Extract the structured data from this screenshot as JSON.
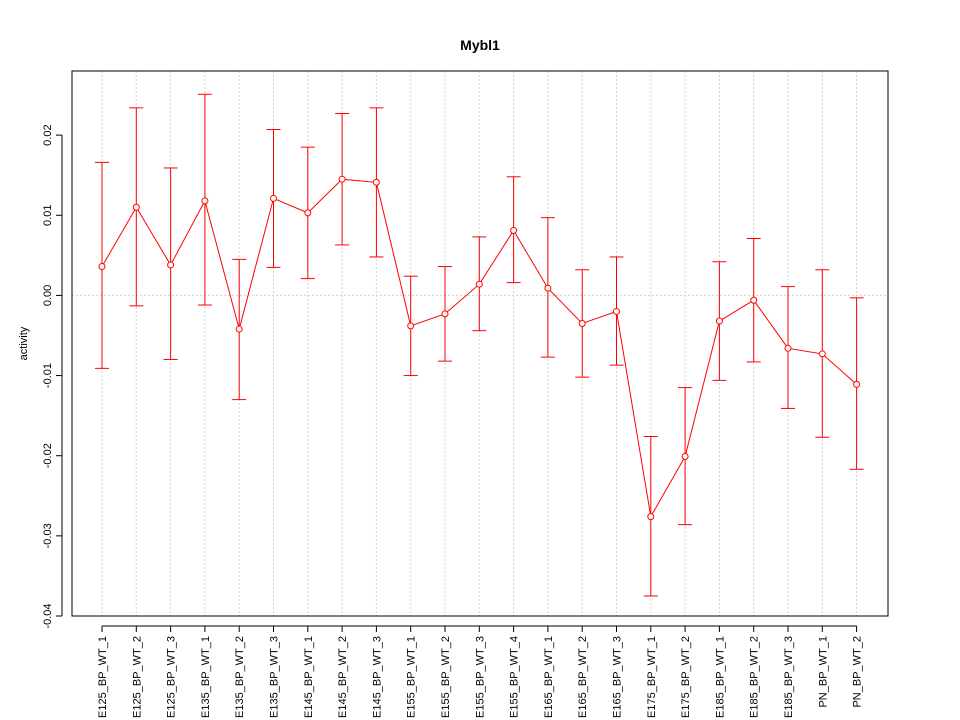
{
  "chart_data": {
    "type": "line",
    "title": "Mybl1",
    "xlabel": "",
    "ylabel": "activity",
    "ylim": [
      -0.04,
      0.028
    ],
    "yticks": [
      -0.04,
      -0.03,
      -0.02,
      -0.01,
      0.0,
      0.01,
      0.02
    ],
    "ytick_labels": [
      "-0.04",
      "-0.03",
      "-0.02",
      "-0.01",
      "0.00",
      "0.01",
      "0.02"
    ],
    "grid": true,
    "series_color": "#ff0000",
    "grid_color": "#d3d3d3",
    "categories": [
      "E125_BP_WT_1",
      "E125_BP_WT_2",
      "E125_BP_WT_3",
      "E135_BP_WT_1",
      "E135_BP_WT_2",
      "E135_BP_WT_3",
      "E145_BP_WT_1",
      "E145_BP_WT_2",
      "E145_BP_WT_3",
      "E155_BP_WT_1",
      "E155_BP_WT_2",
      "E155_BP_WT_3",
      "E155_BP_WT_4",
      "E165_BP_WT_1",
      "E165_BP_WT_2",
      "E165_BP_WT_3",
      "E175_BP_WT_1",
      "E175_BP_WT_2",
      "E185_BP_WT_1",
      "E185_BP_WT_2",
      "E185_BP_WT_3",
      "PN_BP_WT_1",
      "PN_BP_WT_2"
    ],
    "values": [
      0.0036,
      0.011,
      0.0038,
      0.0118,
      -0.0042,
      0.0121,
      0.0103,
      0.0145,
      0.0141,
      -0.0038,
      -0.0023,
      0.0014,
      0.0081,
      0.0009,
      -0.0035,
      -0.002,
      -0.0276,
      -0.0201,
      -0.0032,
      -0.0006,
      -0.0066,
      -0.0073,
      -0.0111
    ],
    "upper": [
      0.0166,
      0.0234,
      0.0159,
      0.0251,
      0.0045,
      0.0207,
      0.0185,
      0.0227,
      0.0234,
      0.0024,
      0.0036,
      0.0073,
      0.0148,
      0.0097,
      0.0032,
      0.0048,
      -0.0176,
      -0.0115,
      0.0042,
      0.0071,
      0.0011,
      0.0032,
      -0.0003
    ],
    "lower": [
      -0.0091,
      -0.0013,
      -0.008,
      -0.0012,
      -0.013,
      0.0035,
      0.0021,
      0.0063,
      0.0048,
      -0.01,
      -0.0082,
      -0.0044,
      0.0016,
      -0.0077,
      -0.0102,
      -0.0087,
      -0.0375,
      -0.0286,
      -0.0106,
      -0.0083,
      -0.0141,
      -0.0177,
      -0.0217
    ]
  }
}
